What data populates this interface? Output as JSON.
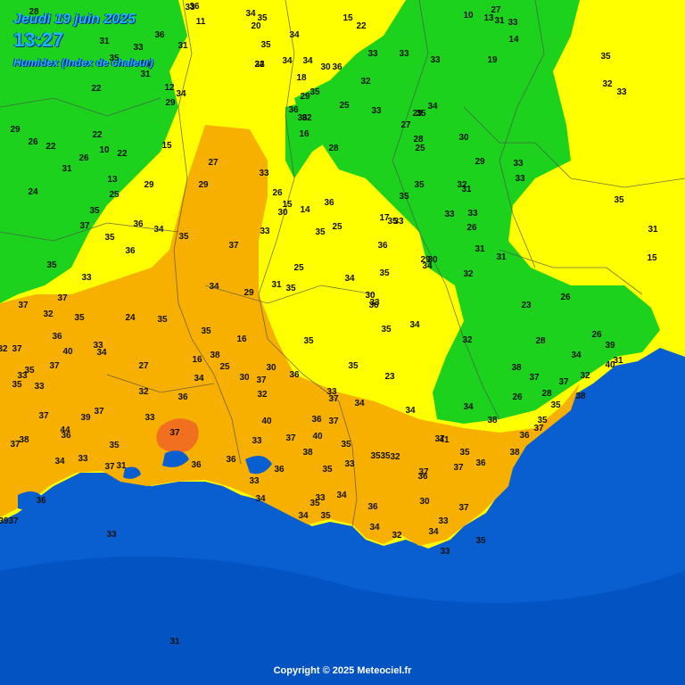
{
  "header": {
    "date": "Jeudi 19 juin 2025",
    "time": "13:27",
    "title": "Humidex (Index de chaleur)"
  },
  "footer": {
    "copyright": "Copyright © 2025 Meteociel.fr"
  },
  "colors": {
    "sea": "#0a5fd0",
    "sea_dark": "#0049b8",
    "green": "#1cd21c",
    "yellow": "#ffff00",
    "orange": "#f8b000",
    "red_orange": "#f07020",
    "border": "#505050"
  },
  "labels": [
    "28",
    "33",
    "36",
    "34",
    "35",
    "11",
    "20",
    "15",
    "22",
    "10",
    "13",
    "27",
    "31",
    "33",
    "31",
    "33",
    "36",
    "35",
    "14",
    "31",
    "35",
    "34",
    "33",
    "33",
    "31",
    "33",
    "33",
    "19",
    "35",
    "24",
    "32",
    "34",
    "34",
    "30",
    "36",
    "32",
    "22",
    "18",
    "12",
    "34",
    "35",
    "29",
    "29",
    "36",
    "25",
    "33",
    "36",
    "32",
    "34",
    "35",
    "29",
    "32",
    "33",
    "29",
    "26",
    "22",
    "22",
    "10",
    "15",
    "16",
    "27",
    "28",
    "30",
    "28",
    "25",
    "31",
    "26",
    "22",
    "13",
    "29",
    "27",
    "33",
    "29",
    "26",
    "29",
    "33",
    "33",
    "24",
    "25",
    "36",
    "35",
    "35",
    "35",
    "32",
    "31",
    "35",
    "36",
    "15",
    "30",
    "17",
    "35",
    "33",
    "33",
    "33",
    "26",
    "37",
    "33",
    "14",
    "35",
    "25",
    "37",
    "35",
    "34",
    "35",
    "36",
    "31",
    "31",
    "15",
    "36",
    "31",
    "35",
    "25",
    "29",
    "30",
    "34",
    "33",
    "34",
    "29",
    "31",
    "35",
    "34",
    "35",
    "32",
    "26",
    "37",
    "30",
    "33",
    "37",
    "32",
    "35",
    "24",
    "35",
    "36",
    "35",
    "34",
    "23",
    "35",
    "16",
    "35",
    "32",
    "28",
    "34",
    "39",
    "26",
    "32",
    "37",
    "36",
    "33",
    "34",
    "27",
    "40",
    "16",
    "38",
    "35",
    "37",
    "33",
    "35",
    "33",
    "32",
    "34",
    "25",
    "30",
    "36",
    "35",
    "23",
    "38",
    "37",
    "37",
    "32",
    "40",
    "31",
    "36",
    "30",
    "37",
    "32",
    "33",
    "37",
    "34",
    "34",
    "34",
    "26",
    "28",
    "35",
    "38",
    "37",
    "39",
    "37",
    "33",
    "37",
    "40",
    "36",
    "37",
    "38",
    "35",
    "37",
    "38",
    "44",
    "36",
    "35",
    "33",
    "37",
    "40",
    "35",
    "36",
    "37",
    "34",
    "33",
    "37",
    "31",
    "36",
    "36",
    "36",
    "38",
    "35",
    "33",
    "35",
    "35",
    "32",
    "37",
    "41",
    "35",
    "37",
    "36",
    "38",
    "37",
    "36",
    "33",
    "39",
    "37",
    "36",
    "34",
    "35",
    "34",
    "33",
    "36",
    "30",
    "37",
    "33",
    "34",
    "35",
    "34",
    "32",
    "33",
    "34",
    "35",
    "31",
    "33",
    "33",
    "36",
    "34",
    "35",
    "36",
    "31"
  ]
}
